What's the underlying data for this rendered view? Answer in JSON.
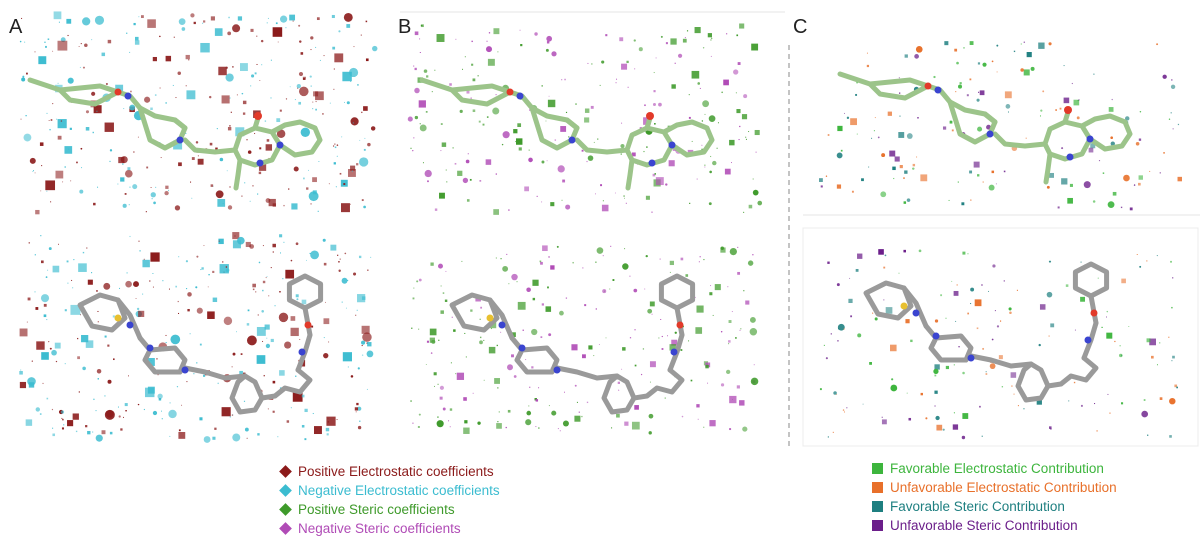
{
  "panels": {
    "a_label": "A",
    "b_label": "B",
    "c_label": "C"
  },
  "legend_left": [
    {
      "text": "Positive Electrostatic coefficients",
      "color": "#8b1a1a",
      "marker": "diamond"
    },
    {
      "text": "Negative Electrostatic coefficients",
      "color": "#3bbcd0",
      "marker": "diamond"
    },
    {
      "text": "Positive Steric coefficients",
      "color": "#3e9a2a",
      "marker": "diamond"
    },
    {
      "text": "Negative Steric coefficients",
      "color": "#b04bb6",
      "marker": "diamond"
    }
  ],
  "legend_right": [
    {
      "text": "Favorable Electrostatic Contribution",
      "color": "#3db53d",
      "marker": "square"
    },
    {
      "text": "Unfavorable Electrostatic Contribution",
      "color": "#e8702a",
      "marker": "square"
    },
    {
      "text": "Favorable Steric Contribution",
      "color": "#1e7f80",
      "marker": "square"
    },
    {
      "text": "Unfavorable Steric Contribution",
      "color": "#6b1e8a",
      "marker": "square"
    }
  ],
  "colors": {
    "molecule_green": "#9cc48a",
    "molecule_grey": "#9a9a9a",
    "oxygen": "#e23a2a",
    "nitrogen": "#3a44d0",
    "sulfur": "#e8c030"
  }
}
